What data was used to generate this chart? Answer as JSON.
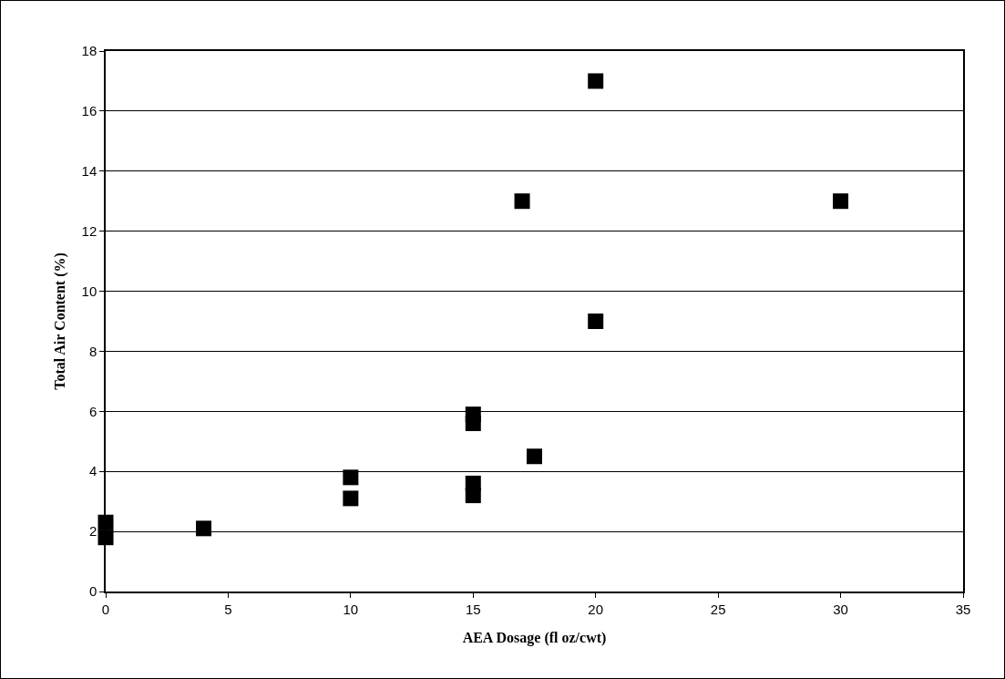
{
  "chart_data": {
    "type": "scatter",
    "xlabel": "AEA Dosage (fl oz/cwt)",
    "ylabel": "Total Air Content (%)",
    "x": [
      0,
      0,
      4,
      10,
      10,
      15,
      15,
      15,
      15,
      17,
      17.5,
      20,
      20,
      30
    ],
    "values": [
      1.8,
      2.3,
      2.1,
      3.1,
      3.8,
      3.2,
      3.6,
      5.6,
      5.9,
      13,
      4.5,
      17,
      9,
      13
    ],
    "color": "#000000",
    "marker": "square",
    "xlim": [
      0,
      35
    ],
    "xticks": [
      0,
      5,
      10,
      15,
      20,
      25,
      30,
      35
    ],
    "ylim": [
      0,
      18
    ],
    "yticks": [
      0,
      2,
      4,
      6,
      8,
      10,
      12,
      14,
      16,
      18
    ],
    "grid": "y"
  }
}
